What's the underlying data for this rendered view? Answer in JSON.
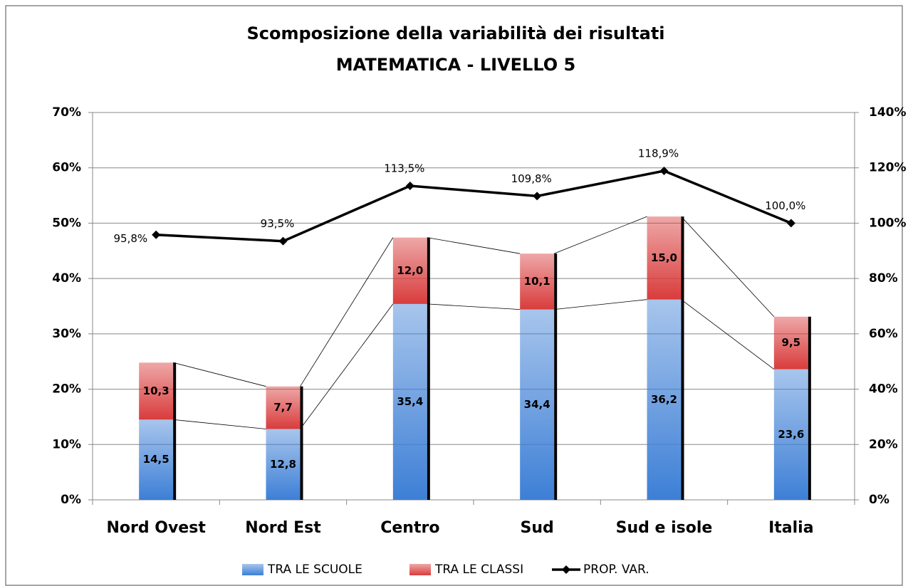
{
  "chart_data": {
    "type": "bar",
    "stacked": true,
    "title": "Scomposizione della variabilità dei risultati",
    "subtitle": "MATEMATICA - LIVELLO 5",
    "categories": [
      "Nord Ovest",
      "Nord Est",
      "Centro",
      "Sud",
      "Sud e isole",
      "Italia"
    ],
    "series": [
      {
        "name": "TRA LE SCUOLE",
        "color": "#3d7fd6",
        "values": [
          14.5,
          12.8,
          35.4,
          34.4,
          36.2,
          23.6
        ],
        "value_labels": [
          "14,5",
          "12,8",
          "35,4",
          "34,4",
          "36,2",
          "23,6"
        ]
      },
      {
        "name": "TRA LE CLASSI",
        "color": "#d93c3c",
        "values": [
          10.3,
          7.7,
          12.0,
          10.1,
          15.0,
          9.5
        ],
        "value_labels": [
          "10,3",
          "7,7",
          "12,0",
          "10,1",
          "15,0",
          "9,5"
        ]
      },
      {
        "name": "PROP. VAR.",
        "type": "line",
        "axis": "y2",
        "color": "#000000",
        "values": [
          95.8,
          93.5,
          113.5,
          109.8,
          118.9,
          100.0
        ],
        "value_labels": [
          "95,8%",
          "93,5%",
          "113,5%",
          "109,8%",
          "118,9%",
          "100,0%"
        ]
      }
    ],
    "ylim": [
      0,
      70
    ],
    "yticks": [
      {
        "value": 0,
        "label": "0%"
      },
      {
        "value": 10,
        "label": "10%"
      },
      {
        "value": 20,
        "label": "20%"
      },
      {
        "value": 30,
        "label": "30%"
      },
      {
        "value": 40,
        "label": "40%"
      },
      {
        "value": 50,
        "label": "50%"
      },
      {
        "value": 60,
        "label": "60%"
      },
      {
        "value": 70,
        "label": "70%"
      }
    ],
    "y2lim": [
      0,
      140
    ],
    "y2ticks": [
      {
        "value": 0,
        "label": "0%"
      },
      {
        "value": 20,
        "label": "20%"
      },
      {
        "value": 40,
        "label": "40%"
      },
      {
        "value": 60,
        "label": "60%"
      },
      {
        "value": 80,
        "label": "80%"
      },
      {
        "value": 100,
        "label": "100%"
      },
      {
        "value": 120,
        "label": "120%"
      },
      {
        "value": 140,
        "label": "140%"
      }
    ],
    "grid": true,
    "legend": "bottom"
  }
}
